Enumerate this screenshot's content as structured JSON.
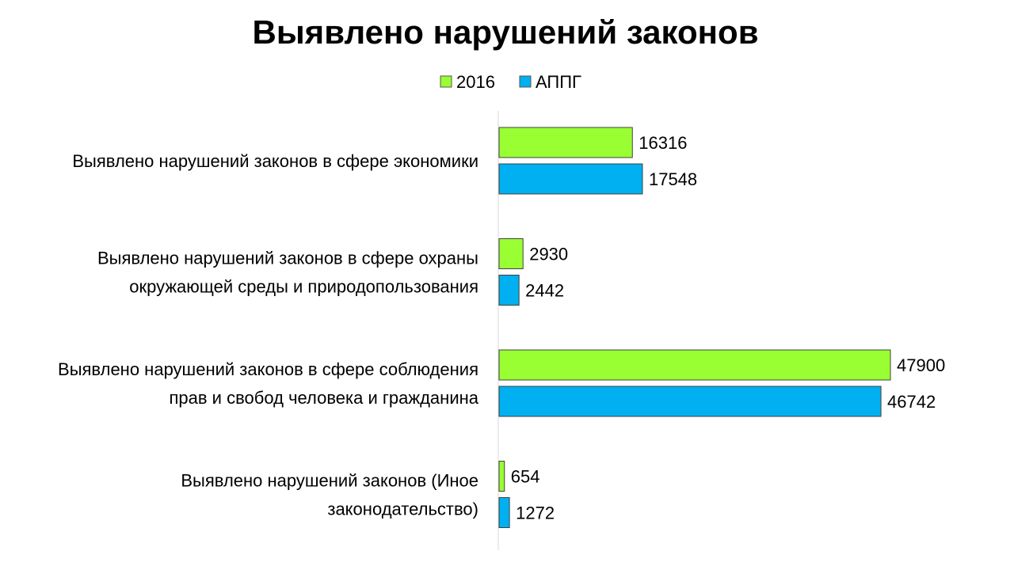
{
  "chart_data": {
    "type": "bar",
    "orientation": "horizontal",
    "title": "Выявлено нарушений законов",
    "xlabel": "",
    "ylabel": "",
    "xlim": [
      0,
      50000
    ],
    "grid": false,
    "legend_position": "top",
    "data_labels": true,
    "categories": [
      [
        "Выявлено нарушений законов в сфере экономики"
      ],
      [
        "Выявлено нарушений законов в сфере охраны",
        "окружающей среды и природопользования"
      ],
      [
        "Выявлено нарушений законов в сфере соблюдения",
        "прав и свобод человека и гражданина"
      ],
      [
        "Выявлено нарушений законов (Иное",
        "законодательство)"
      ]
    ],
    "series": [
      {
        "name": "2016",
        "color": "#99ff33",
        "values": [
          16316,
          2930,
          47900,
          654
        ]
      },
      {
        "name": "АППГ",
        "color": "#00b0f0",
        "values": [
          17548,
          2442,
          46742,
          1272
        ]
      }
    ]
  }
}
